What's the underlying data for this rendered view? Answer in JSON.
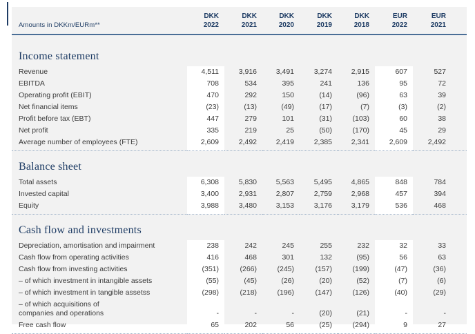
{
  "colors": {
    "navy": "#1e3c64",
    "rule": "#4a6e96",
    "dot": "#9cb0c6",
    "ink": "#3b3b3b",
    "tableBg": "#f2f2f2",
    "hl": "#ffffff",
    "pageBg": "#ffffff"
  },
  "table": {
    "corner_label": "Amounts in DKKm/EURm**",
    "columns": [
      {
        "currency": "DKK",
        "year": "2022",
        "highlight": true
      },
      {
        "currency": "DKK",
        "year": "2021",
        "highlight": false
      },
      {
        "currency": "DKK",
        "year": "2020",
        "highlight": false
      },
      {
        "currency": "DKK",
        "year": "2019",
        "highlight": false
      },
      {
        "currency": "DKK",
        "year": "2018",
        "highlight": false
      },
      {
        "currency": "EUR",
        "year": "2022",
        "highlight": true
      },
      {
        "currency": "EUR",
        "year": "2021",
        "highlight": false
      }
    ],
    "sections": [
      {
        "title": "Income statement",
        "rows": [
          {
            "label": "Revenue",
            "values": [
              "4,511",
              "3,916",
              "3,491",
              "3,274",
              "2,915",
              "607",
              "527"
            ]
          },
          {
            "label": "EBITDA",
            "values": [
              "708",
              "534",
              "395",
              "241",
              "136",
              "95",
              "72"
            ]
          },
          {
            "label": "Operating profit (EBIT)",
            "values": [
              "470",
              "292",
              "150",
              "(14)",
              "(96)",
              "63",
              "39"
            ]
          },
          {
            "label": "Net financial items",
            "values": [
              "(23)",
              "(13)",
              "(49)",
              "(17)",
              "(7)",
              "(3)",
              "(2)"
            ]
          },
          {
            "label": "Profit before tax (EBT)",
            "values": [
              "447",
              "279",
              "101",
              "(31)",
              "(103)",
              "60",
              "38"
            ]
          },
          {
            "label": "Net profit",
            "values": [
              "335",
              "219",
              "25",
              "(50)",
              "(170)",
              "45",
              "29"
            ]
          },
          {
            "label": "Average number of employees (FTE)",
            "values": [
              "2,609",
              "2,492",
              "2,419",
              "2,385",
              "2,341",
              "2,609",
              "2,492"
            ]
          }
        ]
      },
      {
        "title": "Balance sheet",
        "rows": [
          {
            "label": "Total assets",
            "values": [
              "6,308",
              "5,830",
              "5,563",
              "5,495",
              "4,865",
              "848",
              "784"
            ]
          },
          {
            "label": "Invested capital",
            "values": [
              "3,400",
              "2,931",
              "2,807",
              "2,759",
              "2,968",
              "457",
              "394"
            ]
          },
          {
            "label": "Equity",
            "values": [
              "3,988",
              "3,480",
              "3,153",
              "3,176",
              "3,179",
              "536",
              "468"
            ]
          }
        ]
      },
      {
        "title": "Cash flow and investments",
        "rows": [
          {
            "label": "Depreciation, amortisation and impairment",
            "values": [
              "238",
              "242",
              "245",
              "255",
              "232",
              "32",
              "33"
            ]
          },
          {
            "label": "Cash flow from operating activities",
            "values": [
              "416",
              "468",
              "301",
              "132",
              "(95)",
              "56",
              "63"
            ]
          },
          {
            "label": "Cash flow from investing activities",
            "values": [
              "(351)",
              "(266)",
              "(245)",
              "(157)",
              "(199)",
              "(47)",
              "(36)"
            ]
          },
          {
            "label": "– of which investment in intangible assets",
            "values": [
              "(55)",
              "(45)",
              "(26)",
              "(20)",
              "(52)",
              "(7)",
              "(6)"
            ]
          },
          {
            "label": "– of which investment in tangible assetss",
            "values": [
              "(298)",
              "(218)",
              "(196)",
              "(147)",
              "(126)",
              "(40)",
              "(29)"
            ]
          },
          {
            "label": "– of which acquisitions of\ncompanies and operations",
            "values": [
              "-",
              "-",
              "-",
              "(20)",
              "(21)",
              "-",
              "-"
            ]
          },
          {
            "label": "Free cash flow",
            "values": [
              "65",
              "202",
              "56",
              "(25)",
              "(294)",
              "9",
              "27"
            ]
          }
        ]
      }
    ]
  }
}
